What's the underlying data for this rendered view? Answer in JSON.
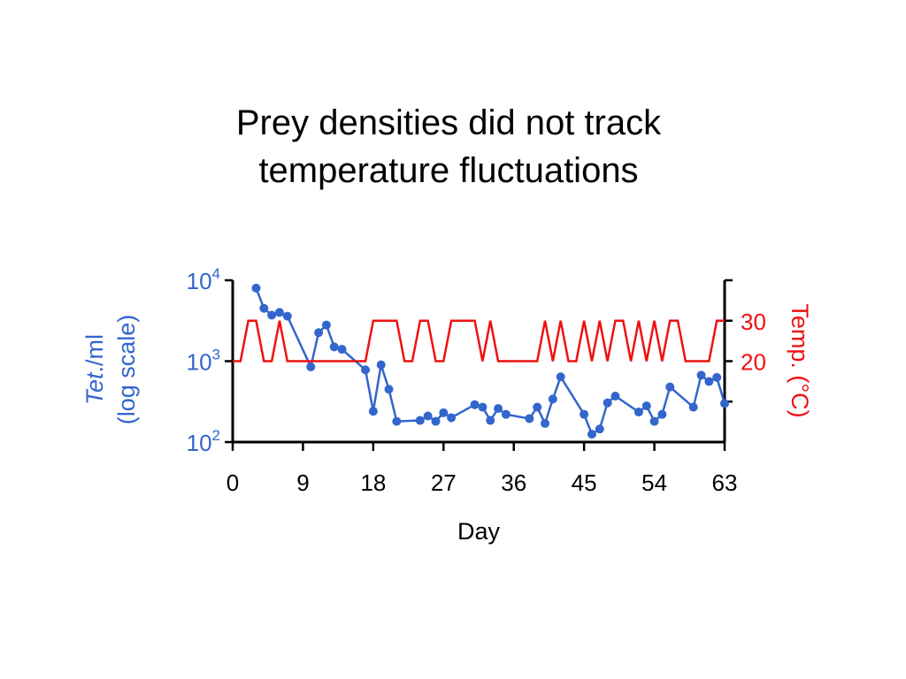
{
  "title_lines": [
    "Prey densities did not track",
    "temperature fluctuations"
  ],
  "chart_data": {
    "type": "line",
    "xlabel": "Day",
    "x_ticks": [
      0,
      9,
      18,
      27,
      36,
      45,
      54,
      63
    ],
    "xlim": [
      0,
      63
    ],
    "y_left": {
      "label_italic": "Tet",
      "label_rest": "./ml",
      "label_line2": "(log scale)",
      "scale": "log",
      "ylim": [
        100,
        10000
      ],
      "ticks": [
        {
          "value": 100,
          "base": "10",
          "exp": "2"
        },
        {
          "value": 1000,
          "base": "10",
          "exp": "3"
        },
        {
          "value": 10000,
          "base": "10",
          "exp": "4"
        }
      ],
      "color": "#3366cc"
    },
    "y_right": {
      "label": "Temp. (°C)",
      "ylim": [
        0,
        40
      ],
      "ticks": [
        10,
        20,
        30,
        40
      ],
      "tick_labels": [
        {
          "value": 20,
          "label": "20"
        },
        {
          "value": 30,
          "label": "30"
        }
      ],
      "color": "#ee1111"
    },
    "series": [
      {
        "axis": "left",
        "color": "#3366cc",
        "markers": true,
        "x": [
          3,
          4,
          5,
          6,
          7,
          10,
          11,
          12,
          13,
          14,
          17,
          18,
          19,
          20,
          21,
          24,
          25,
          26,
          27,
          28,
          31,
          32,
          33,
          34,
          35,
          38,
          39,
          40,
          41,
          42,
          45,
          46,
          47,
          48,
          49,
          52,
          53,
          54,
          55,
          56,
          59,
          60,
          61,
          62,
          63
        ],
        "y": [
          8000,
          4500,
          3700,
          4000,
          3600,
          850,
          2250,
          2800,
          1500,
          1400,
          780,
          240,
          900,
          450,
          180,
          185,
          210,
          180,
          230,
          200,
          290,
          270,
          185,
          260,
          220,
          195,
          270,
          170,
          340,
          640,
          220,
          125,
          145,
          305,
          370,
          235,
          280,
          180,
          220,
          480,
          270,
          670,
          560,
          630,
          300
        ]
      },
      {
        "axis": "right",
        "color": "#ee1111",
        "markers": false,
        "x": [
          0,
          1,
          2,
          3,
          4,
          5,
          6,
          7,
          8,
          9,
          10,
          11,
          12,
          13,
          14,
          15,
          16,
          17,
          18,
          19,
          20,
          21,
          22,
          23,
          24,
          25,
          26,
          27,
          28,
          29,
          30,
          31,
          32,
          33,
          34,
          35,
          36,
          37,
          38,
          39,
          40,
          41,
          42,
          43,
          44,
          45,
          46,
          47,
          48,
          49,
          50,
          51,
          52,
          53,
          54,
          55,
          56,
          57,
          58,
          59,
          60,
          61,
          62,
          63
        ],
        "y": [
          20,
          20,
          30,
          30,
          20,
          20,
          30,
          20,
          20,
          20,
          20,
          20,
          20,
          20,
          20,
          20,
          20,
          20,
          30,
          30,
          30,
          30,
          20,
          20,
          30,
          30,
          20,
          20,
          30,
          30,
          30,
          30,
          20,
          30,
          20,
          20,
          20,
          20,
          20,
          20,
          30,
          20,
          30,
          20,
          20,
          30,
          20,
          30,
          20,
          30,
          30,
          20,
          30,
          20,
          30,
          20,
          30,
          30,
          20,
          20,
          20,
          20,
          30,
          30
        ]
      }
    ],
    "grid": false,
    "legend": "none"
  }
}
